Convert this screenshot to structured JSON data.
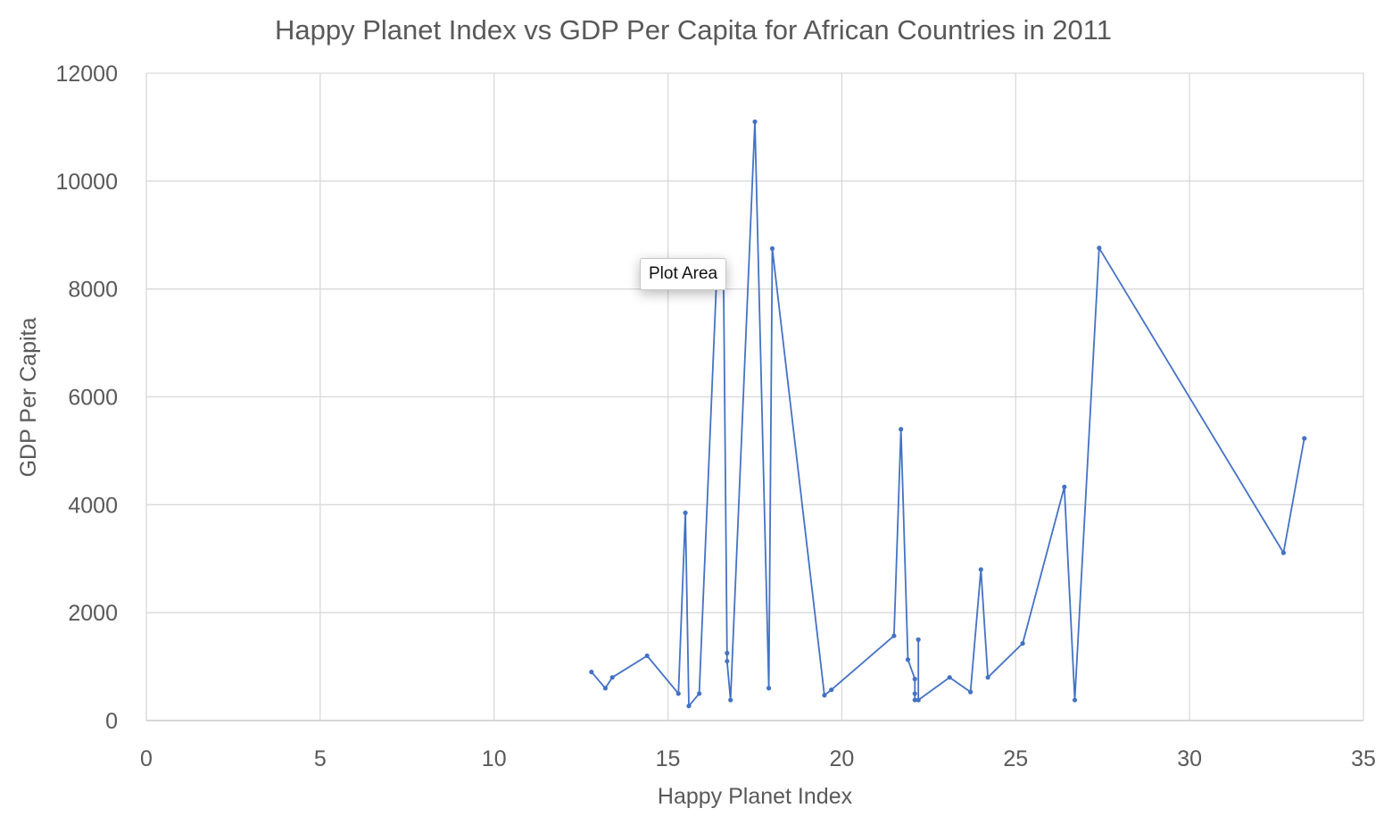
{
  "chart_data": {
    "type": "line",
    "title": "Happy Planet Index vs GDP Per Capita for African Countries in 2011",
    "xlabel": "Happy Planet Index",
    "ylabel": "GDP Per Capita",
    "xlim": [
      0,
      35
    ],
    "ylim": [
      0,
      12000
    ],
    "x_ticks": [
      0,
      5,
      10,
      15,
      20,
      25,
      30,
      35
    ],
    "y_ticks": [
      0,
      2000,
      4000,
      6000,
      8000,
      10000,
      12000
    ],
    "x_tick_labels": [
      "0",
      "5",
      "10",
      "15",
      "20",
      "25",
      "30",
      "35"
    ],
    "y_tick_labels": [
      "0",
      "2000",
      "4000",
      "6000",
      "8000",
      "10000",
      "12000"
    ],
    "grid": true,
    "legend": "none",
    "series": [
      {
        "color": "#4472c4",
        "x": [
          12.8,
          13.2,
          13.4,
          14.4,
          15.3,
          15.5,
          15.6,
          15.9,
          16.4,
          16.6,
          16.7,
          16.7,
          16.8,
          17.5,
          17.9,
          18.0,
          19.5,
          19.7,
          21.5,
          21.7,
          21.9,
          22.1,
          22.1,
          22.1,
          22.2,
          22.2,
          22.2,
          23.1,
          23.7,
          24.0,
          24.2,
          25.2,
          26.4,
          26.7,
          27.4,
          32.7,
          33.3
        ],
        "y": [
          900,
          600,
          800,
          1200,
          500,
          3850,
          270,
          500,
          8200,
          8150,
          1250,
          1100,
          380,
          11100,
          600,
          8750,
          470,
          570,
          1570,
          5400,
          1130,
          770,
          500,
          380,
          380,
          1500,
          380,
          800,
          530,
          2800,
          800,
          1430,
          4330,
          380,
          8760,
          3110,
          5230
        ]
      }
    ]
  },
  "tooltip": {
    "label": "Plot Area"
  }
}
